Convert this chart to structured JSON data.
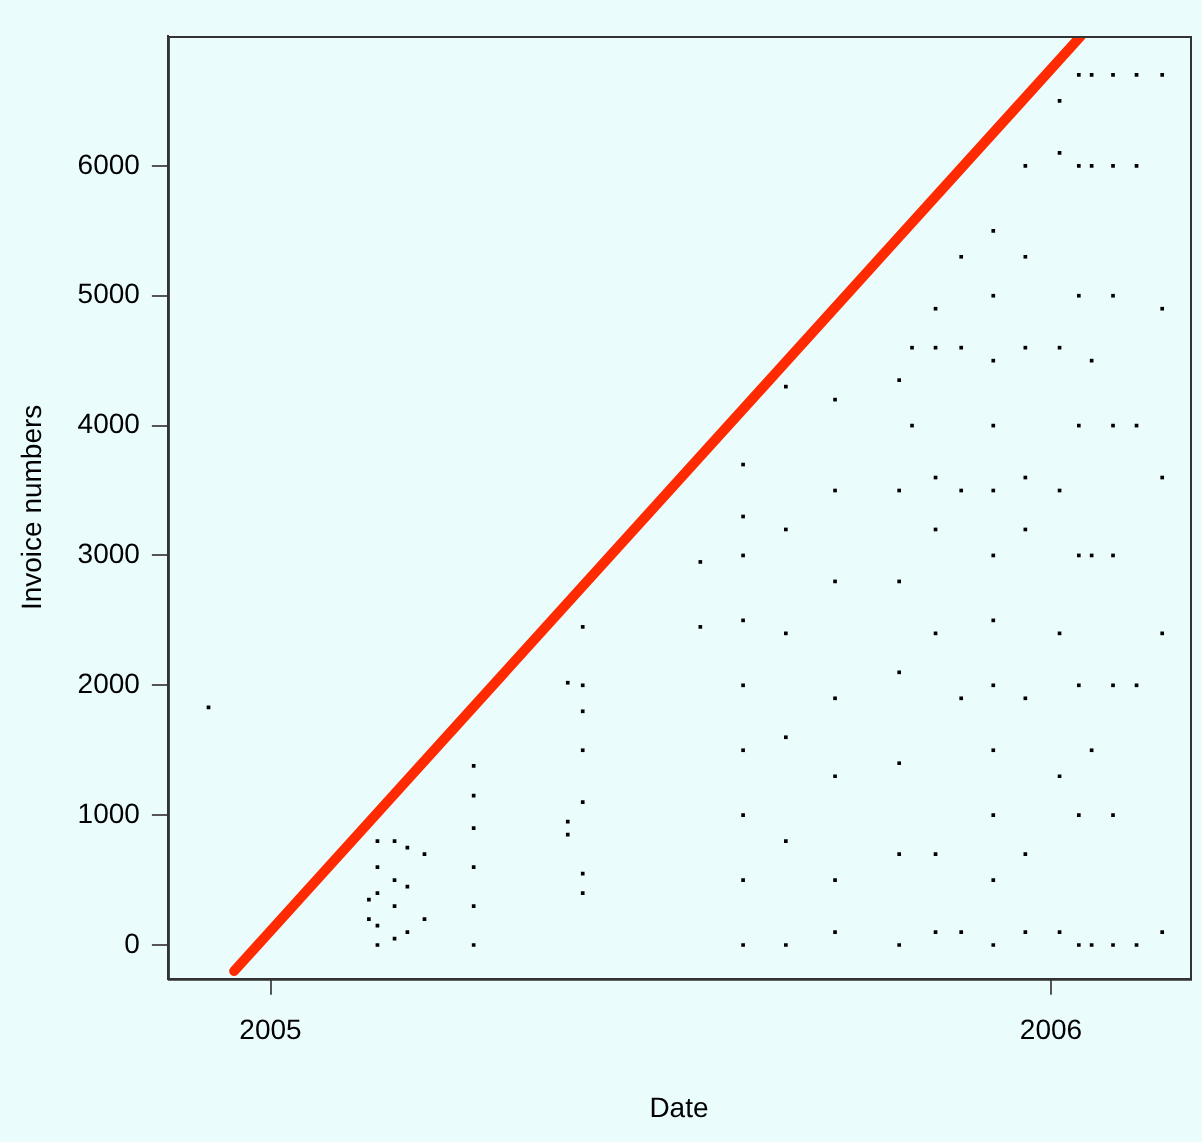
{
  "chart_data": {
    "type": "scatter",
    "xlabel": "Date",
    "ylabel": "Invoice numbers",
    "xlim": [
      "2004-11-14",
      "2006-03-07"
    ],
    "xticks": [
      "2005",
      "2006"
    ],
    "ylim": [
      -260,
      7000
    ],
    "yticks": [
      0,
      1000,
      2000,
      3000,
      4000,
      5000,
      6000
    ],
    "grid": false,
    "legend": false,
    "series": [
      {
        "marker": "square",
        "color": "#000000",
        "x": [
          "2004-12-03",
          "2005-02-16",
          "2005-02-16",
          "2005-02-20",
          "2005-02-20",
          "2005-02-20",
          "2005-02-20",
          "2005-02-20",
          "2005-02-28",
          "2005-02-28",
          "2005-02-28",
          "2005-02-28",
          "2005-03-06",
          "2005-03-06",
          "2005-03-06",
          "2005-03-14",
          "2005-03-14",
          "2005-04-06",
          "2005-04-06",
          "2005-04-06",
          "2005-04-06",
          "2005-04-06",
          "2005-04-06",
          "2005-05-20",
          "2005-05-20",
          "2005-05-20",
          "2005-05-27",
          "2005-05-27",
          "2005-05-27",
          "2005-05-27",
          "2005-05-27",
          "2005-05-27",
          "2005-05-27",
          "2005-07-21",
          "2005-07-21",
          "2005-08-10",
          "2005-08-10",
          "2005-08-10",
          "2005-08-10",
          "2005-08-10",
          "2005-08-10",
          "2005-08-10",
          "2005-08-10",
          "2005-08-10",
          "2005-08-30",
          "2005-08-30",
          "2005-08-30",
          "2005-08-30",
          "2005-08-30",
          "2005-08-30",
          "2005-09-22",
          "2005-09-22",
          "2005-09-22",
          "2005-09-22",
          "2005-09-22",
          "2005-09-22",
          "2005-09-22",
          "2005-10-22",
          "2005-10-22",
          "2005-10-22",
          "2005-10-22",
          "2005-10-22",
          "2005-10-22",
          "2005-10-22",
          "2005-10-28",
          "2005-10-28",
          "2005-11-08",
          "2005-11-08",
          "2005-11-08",
          "2005-11-08",
          "2005-11-08",
          "2005-11-08",
          "2005-11-08",
          "2005-11-20",
          "2005-11-20",
          "2005-11-20",
          "2005-11-20",
          "2005-11-20",
          "2005-12-05",
          "2005-12-05",
          "2005-12-05",
          "2005-12-05",
          "2005-12-05",
          "2005-12-05",
          "2005-12-05",
          "2005-12-05",
          "2005-12-05",
          "2005-12-05",
          "2005-12-05",
          "2005-12-05",
          "2005-12-20",
          "2005-12-20",
          "2005-12-20",
          "2005-12-20",
          "2005-12-20",
          "2005-12-20",
          "2005-12-20",
          "2005-12-20",
          "2006-01-05",
          "2006-01-05",
          "2006-01-05",
          "2006-01-05",
          "2006-01-05",
          "2006-01-05",
          "2006-01-05",
          "2006-01-14",
          "2006-01-14",
          "2006-01-14",
          "2006-01-14",
          "2006-01-14",
          "2006-01-14",
          "2006-01-14",
          "2006-01-14",
          "2006-01-20",
          "2006-01-20",
          "2006-01-20",
          "2006-01-20",
          "2006-01-20",
          "2006-01-20",
          "2006-01-30",
          "2006-01-30",
          "2006-01-30",
          "2006-01-30",
          "2006-01-30",
          "2006-01-30",
          "2006-01-30",
          "2006-01-30",
          "2006-02-10",
          "2006-02-10",
          "2006-02-10",
          "2006-02-10",
          "2006-02-10",
          "2006-02-22",
          "2006-02-22",
          "2006-02-22",
          "2006-02-22",
          "2006-02-22"
        ],
        "values": [
          1830,
          200,
          350,
          0,
          150,
          400,
          600,
          800,
          50,
          300,
          500,
          800,
          100,
          450,
          750,
          200,
          700,
          0,
          300,
          600,
          900,
          1150,
          1380,
          850,
          950,
          2020,
          400,
          550,
          1100,
          1500,
          1800,
          2000,
          2450,
          2450,
          2950,
          0,
          500,
          1000,
          1500,
          2000,
          2500,
          3000,
          3300,
          3700,
          0,
          800,
          1600,
          2400,
          3200,
          4300,
          100,
          500,
          1300,
          1900,
          2800,
          3500,
          4200,
          0,
          700,
          1400,
          2100,
          2800,
          3500,
          4350,
          4000,
          4600,
          100,
          700,
          2400,
          3200,
          3600,
          4600,
          4900,
          100,
          1900,
          3500,
          4600,
          5300,
          0,
          500,
          1000,
          1500,
          2000,
          2500,
          3000,
          3500,
          4000,
          4500,
          5000,
          5500,
          100,
          700,
          1900,
          3200,
          3600,
          4600,
          5300,
          6000,
          100,
          1300,
          2400,
          3500,
          4600,
          6100,
          6500,
          0,
          1000,
          2000,
          3000,
          4000,
          5000,
          6000,
          6700,
          0,
          1500,
          3000,
          4500,
          6000,
          6700,
          0,
          1000,
          2000,
          3000,
          4000,
          5000,
          6000,
          6700,
          0,
          2000,
          4000,
          6000,
          6700,
          100,
          2400,
          3600,
          4900,
          6700
        ]
      },
      {
        "type": "line",
        "color": "#ff2a00",
        "x": [
          "2004-12-15",
          "2006-01-15"
        ],
        "values": [
          -200,
          7000
        ]
      }
    ]
  }
}
